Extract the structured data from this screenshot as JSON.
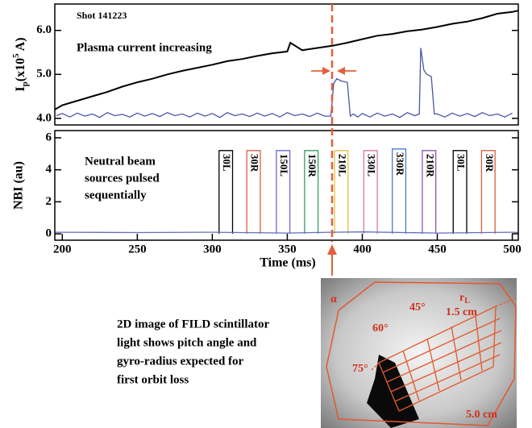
{
  "chart_data": [
    {
      "type": "line",
      "title": "Shot 141223",
      "annotation": "Plasma current increasing",
      "ylabel_parts": [
        "I",
        "p",
        "(x10",
        "5",
        " A)"
      ],
      "xlim": [
        195,
        504
      ],
      "ylim": [
        3.85,
        6.6
      ],
      "yticks": [
        {
          "value": 4,
          "label": "4.0"
        },
        {
          "value": 5,
          "label": "5.0"
        },
        {
          "value": 6,
          "label": "6.0"
        }
      ],
      "series": [
        {
          "color": "#000000",
          "x": [
            195,
            200,
            210,
            220,
            230,
            240,
            250,
            260,
            270,
            280,
            290,
            300,
            310,
            320,
            330,
            340,
            350,
            352,
            360,
            370,
            380,
            390,
            400,
            410,
            420,
            430,
            440,
            450,
            460,
            470,
            480,
            490,
            500,
            504
          ],
          "values": [
            4.2,
            4.3,
            4.4,
            4.5,
            4.6,
            4.72,
            4.82,
            4.9,
            5.0,
            5.08,
            5.15,
            5.22,
            5.3,
            5.35,
            5.42,
            5.48,
            5.52,
            5.72,
            5.55,
            5.6,
            5.65,
            5.72,
            5.8,
            5.88,
            5.92,
            5.98,
            6.02,
            6.08,
            6.15,
            6.2,
            6.28,
            6.38,
            6.42,
            6.45
          ]
        },
        {
          "color": "#4a55a2",
          "x": [
            196,
            200,
            205,
            210,
            215,
            220,
            225,
            230,
            235,
            240,
            245,
            250,
            255,
            260,
            265,
            270,
            275,
            280,
            285,
            290,
            295,
            300,
            305,
            310,
            315,
            320,
            325,
            330,
            335,
            340,
            345,
            350,
            355,
            360,
            365,
            370,
            375,
            379,
            381,
            383,
            386,
            390,
            392,
            394,
            397,
            400,
            405,
            410,
            415,
            420,
            425,
            430,
            435,
            438,
            439,
            441,
            443,
            446,
            448,
            450,
            455,
            460,
            465,
            470,
            475,
            480,
            485,
            490,
            495,
            500
          ],
          "values": [
            4.06,
            4.11,
            4.03,
            4.12,
            4.05,
            4.1,
            4.02,
            4.13,
            4.06,
            4.09,
            4.03,
            4.12,
            4.05,
            4.11,
            4.04,
            4.13,
            4.06,
            4.1,
            4.03,
            4.12,
            4.05,
            4.11,
            4.02,
            4.13,
            4.06,
            4.1,
            4.04,
            4.12,
            4.05,
            4.11,
            4.03,
            4.13,
            4.06,
            4.1,
            4.04,
            4.12,
            4.05,
            4.05,
            4.8,
            4.9,
            4.85,
            4.82,
            4.05,
            4.1,
            4.03,
            4.11,
            4.03,
            4.12,
            4.05,
            4.1,
            4.02,
            4.13,
            4.06,
            4.1,
            5.6,
            5.1,
            5.0,
            4.95,
            4.1,
            4.1,
            4.03,
            4.12,
            4.05,
            4.11,
            4.04,
            4.13,
            4.06,
            4.1,
            4.03,
            4.12
          ]
        }
      ]
    },
    {
      "type": "bar",
      "annotation_lines": [
        "Neutral beam",
        "sources pulsed",
        "sequentially"
      ],
      "ylabel": "NBI (au)",
      "xlabel": "Time (ms)",
      "xlim": [
        195,
        504
      ],
      "ylim": [
        -0.4,
        6.45
      ],
      "xticks": [
        200,
        250,
        300,
        350,
        400,
        450,
        500
      ],
      "yticks": [
        0,
        2,
        4,
        6
      ],
      "pulses": [
        {
          "label": "30L",
          "start": 304.5,
          "end": 313.5,
          "value": 5.2,
          "color": "#000000"
        },
        {
          "label": "30R",
          "start": 323,
          "end": 332,
          "value": 5.2,
          "color": "#d9603b"
        },
        {
          "label": "150L",
          "start": 342.7,
          "end": 351.7,
          "value": 5.2,
          "color": "#6b6bd6"
        },
        {
          "label": "150R",
          "start": 361.5,
          "end": 370.5,
          "value": 5.2,
          "color": "#3a9a6a"
        },
        {
          "label": "210L",
          "start": 381.5,
          "end": 390.5,
          "value": 5.2,
          "color": "#e8c040"
        },
        {
          "label": "330L",
          "start": 401,
          "end": 410,
          "value": 5.2,
          "color": "#d87aa0"
        },
        {
          "label": "330R",
          "start": 420,
          "end": 429,
          "value": 5.3,
          "color": "#4a7ad8"
        },
        {
          "label": "210R",
          "start": 440,
          "end": 449,
          "value": 5.2,
          "color": "#8a5ab0"
        },
        {
          "label": "30L",
          "start": 460.6,
          "end": 469.6,
          "value": 5.2,
          "color": "#000000"
        },
        {
          "label": "30R",
          "start": 479.5,
          "end": 488.5,
          "value": 5.2,
          "color": "#d9603b"
        }
      ],
      "series": [
        {
          "color": "#6070c0",
          "x": [
            195,
            250,
            300,
            350,
            380,
            400,
            450,
            500,
            504
          ],
          "values": [
            0.1,
            0.08,
            0.1,
            0.05,
            0.1,
            0.12,
            0.05,
            0.1,
            0.08
          ]
        }
      ]
    }
  ],
  "image": {
    "caption_lines": [
      "2D image of FILD scintillator",
      "light shows pitch angle and",
      "gyro-radius expected for",
      "first orbit loss"
    ],
    "labels": {
      "alpha": "α",
      "rl": "r",
      "rl_sub": "L",
      "r1": "1.5 cm",
      "a45": "45°",
      "a60": "60°",
      "a75": "75°",
      "r5": "5.0 cm"
    }
  }
}
